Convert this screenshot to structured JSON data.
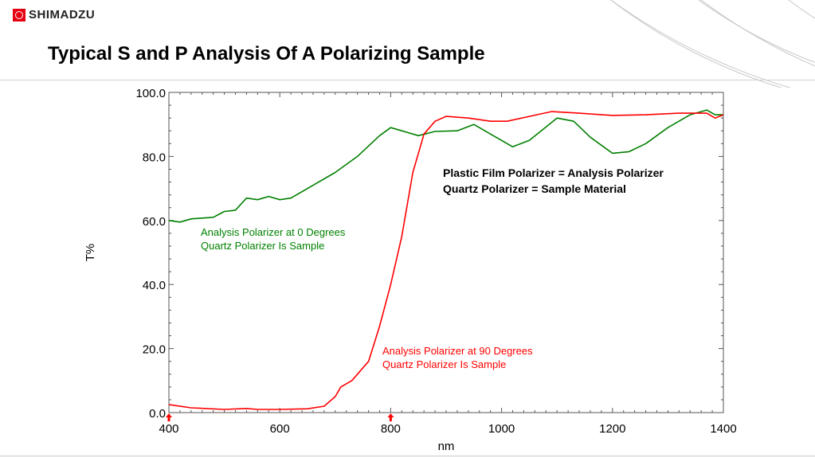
{
  "brand": {
    "name": "SHIMADZU",
    "color": "#e60012"
  },
  "slide_title": "Typical S and P Analysis Of A Polarizing Sample",
  "chart_data": {
    "type": "line",
    "title": "",
    "xlabel": "nm",
    "ylabel": "T%",
    "xlim": [
      400,
      1400
    ],
    "ylim": [
      0,
      100
    ],
    "x_ticks": [
      "400",
      "600",
      "800",
      "1000",
      "1200",
      "1400"
    ],
    "y_ticks": [
      "0.0",
      "20.0",
      "40.0",
      "60.0",
      "80.0",
      "100.0"
    ],
    "grid": false,
    "markers": [
      {
        "x": 400,
        "color": "#ff0000"
      },
      {
        "x": 800,
        "color": "#ff0000"
      }
    ],
    "series": [
      {
        "name": "Analysis Polarizer at 0 Degrees",
        "color": "#008000",
        "x": [
          400,
          420,
          440,
          480,
          500,
          520,
          540,
          560,
          580,
          600,
          620,
          660,
          700,
          740,
          780,
          800,
          820,
          850,
          880,
          920,
          950,
          980,
          1020,
          1050,
          1100,
          1130,
          1160,
          1200,
          1230,
          1260,
          1300,
          1340,
          1370,
          1385,
          1400
        ],
        "y": [
          60,
          59.5,
          60.5,
          61,
          62.8,
          63.2,
          67,
          66.5,
          67.5,
          66.5,
          67,
          71,
          75,
          80,
          86.5,
          89,
          88,
          86.5,
          87.8,
          88,
          90,
          87,
          83,
          85,
          92,
          91,
          86,
          81,
          81.5,
          84,
          89,
          93,
          94.5,
          93,
          93
        ]
      },
      {
        "name": "Analysis Polarizer at 90 Degrees",
        "color": "#ff0000",
        "x": [
          400,
          440,
          500,
          540,
          560,
          600,
          650,
          680,
          700,
          710,
          730,
          760,
          780,
          800,
          820,
          840,
          860,
          880,
          900,
          940,
          980,
          1010,
          1050,
          1090,
          1140,
          1200,
          1260,
          1320,
          1370,
          1385,
          1400
        ],
        "y": [
          2.5,
          1.5,
          1,
          1.3,
          1,
          1,
          1.2,
          2,
          5,
          8,
          10,
          16,
          27,
          40,
          55,
          75,
          87,
          91,
          92.5,
          92,
          91,
          91,
          92.5,
          94,
          93.5,
          92.8,
          93,
          93.5,
          93.5,
          92,
          93
        ]
      }
    ],
    "annotations": {
      "green_line1": "Analysis Polarizer at 0 Degrees",
      "green_line2": "Quartz Polarizer Is Sample",
      "red_line1": "Analysis Polarizer at 90 Degrees",
      "red_line2": "Quartz Polarizer Is Sample",
      "note_line1": "Plastic Film Polarizer = Analysis Polarizer",
      "note_line2": "Quartz Polarizer = Sample Material"
    }
  }
}
